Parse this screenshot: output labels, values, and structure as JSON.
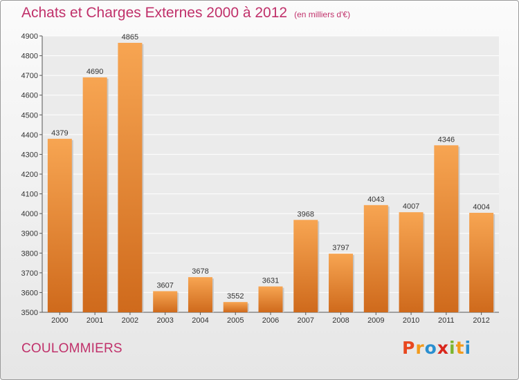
{
  "header": {
    "title": "Achats et Charges Externes 2000 à 2012",
    "subtitle": "(en milliers d'€)"
  },
  "footer": {
    "commune": "COULOMMIERS"
  },
  "logo": {
    "letters": [
      "P",
      "r",
      "o",
      "x",
      "i",
      "t",
      "i"
    ],
    "colors": [
      "#e8471f",
      "#f29a1b",
      "#2a8fd0",
      "#d9261c",
      "#7cb52e",
      "#f29a1b",
      "#2a8fd0"
    ]
  },
  "chart_data": {
    "type": "bar",
    "categories": [
      "2000",
      "2001",
      "2002",
      "2003",
      "2004",
      "2005",
      "2006",
      "2007",
      "2008",
      "2009",
      "2010",
      "2011",
      "2012"
    ],
    "values": [
      4379,
      4690,
      4865,
      3607,
      3678,
      3552,
      3631,
      3968,
      3797,
      4043,
      4007,
      4346,
      4004
    ],
    "title": "Achats et Charges Externes 2000 à 2012",
    "xlabel": "",
    "ylabel": "",
    "ylim": [
      3500,
      4900
    ],
    "yticks": [
      3500,
      3600,
      3700,
      3800,
      3900,
      4000,
      4100,
      4200,
      4300,
      4400,
      4500,
      4600,
      4700,
      4800,
      4900
    ],
    "grid": true,
    "colors": {
      "bar_light": "#f7a552",
      "bar_dark": "#cf6a1c",
      "title": "#c0306a"
    }
  }
}
